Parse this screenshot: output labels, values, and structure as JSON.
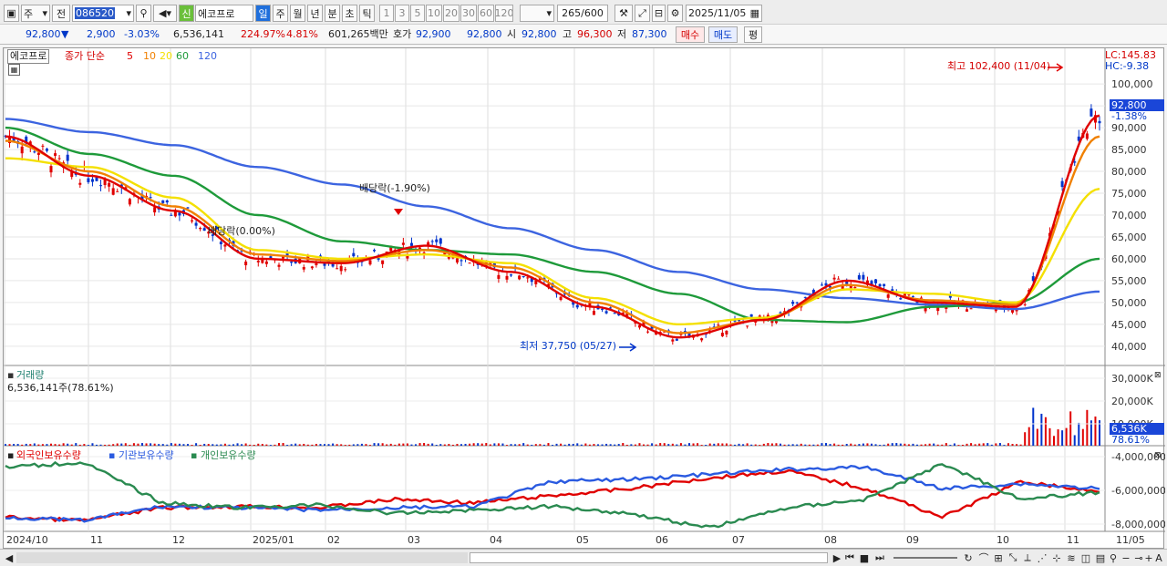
{
  "toolbar": {
    "type_select": "주",
    "prev_label": "전",
    "stock_code": "086520",
    "new_badge": "신",
    "stock_name": "에코프로",
    "periods": [
      "일",
      "주",
      "월",
      "년",
      "분",
      "초",
      "틱"
    ],
    "active_period": "일",
    "intervals": [
      "1",
      "3",
      "5",
      "10",
      "20",
      "30",
      "60",
      "120"
    ],
    "count_value": "265",
    "count_total": "/600",
    "date_value": "2025/11/05"
  },
  "quote": {
    "price": "92,800",
    "change_arrow": "▼",
    "change": "2,900",
    "change_pct": "-3.03%",
    "volume": "6,536,141",
    "volume_ratio": "224.97%",
    "turnover": "4.81%",
    "amount": "601,265백만",
    "bid_label": "호가",
    "bid1": "92,900",
    "bid2": "92,800",
    "open_label": "시",
    "open": "92,800",
    "high_label": "고",
    "high": "96,300",
    "low_label": "저",
    "low": "87,300",
    "buy_button": "매수",
    "sell_button": "매도",
    "eval_button": "평"
  },
  "price_panel": {
    "stock_tag": "에코프로",
    "legend_prefix": "종가 단순",
    "ma_labels": [
      "5",
      "10",
      "20",
      "60",
      "120"
    ],
    "ma_colors": [
      "#e00000",
      "#f08000",
      "#f4e000",
      "#1e9a3a",
      "#3c64e0"
    ],
    "lc_label": "LC:145.83",
    "hc_label": "HC:-9.38",
    "y_ticks": [
      "100,000",
      "95,000",
      "90,000",
      "85,000",
      "80,000",
      "75,000",
      "70,000",
      "65,000",
      "60,000",
      "55,000",
      "50,000",
      "45,000",
      "40,000"
    ],
    "current_price_tag": "92,800",
    "current_pct_tag": "-1.38%",
    "high_annotation": "최고 102,400 (11/04)",
    "low_annotation": "최저 37,750 (05/27)",
    "dividend1": "배당락(-1.90%)",
    "dividend2": "배당락(0.00%)"
  },
  "volume_panel": {
    "title": "거래량",
    "value_text": "6,536,141주(78.61%)",
    "y_ticks": [
      "30,000K",
      "20,000K",
      "10,000K"
    ],
    "current_tag": "6,536K",
    "current_pct": "78.61%"
  },
  "holding_panel": {
    "series_labels": [
      "외국인보유수량",
      "기관보유수량",
      "개인보유수량"
    ],
    "series_colors": [
      "#e00000",
      "#2a5ae0",
      "#2a8a50"
    ],
    "y_ticks": [
      "-4,000,000",
      "-6,000,000",
      "-8,000,000"
    ]
  },
  "x_axis": {
    "labels": [
      "2024/10",
      "11",
      "12",
      "2025/01",
      "02",
      "03",
      "04",
      "05",
      "06",
      "07",
      "08",
      "09",
      "10",
      "11"
    ],
    "right_label": "11/05"
  },
  "chart_data": {
    "type": "line",
    "title": "",
    "x": [
      "2024/10",
      "11",
      "12",
      "2025/01",
      "02",
      "03",
      "04",
      "05",
      "06",
      "07",
      "08",
      "09",
      "10",
      "11"
    ],
    "ylim": [
      36000,
      104000
    ],
    "series": [
      {
        "name": "5",
        "values": [
          88000,
          79000,
          71000,
          60000,
          59000,
          63000,
          57000,
          49000,
          42000,
          46000,
          55000,
          50000,
          49000,
          92800
        ]
      },
      {
        "name": "10",
        "values": [
          87000,
          80000,
          72000,
          61000,
          59500,
          62000,
          58000,
          50000,
          43000,
          46000,
          54000,
          50500,
          49500,
          88000
        ]
      },
      {
        "name": "20",
        "values": [
          83000,
          81000,
          74000,
          62000,
          60000,
          61000,
          59000,
          51000,
          45000,
          46500,
          53000,
          52000,
          50000,
          76000
        ]
      },
      {
        "name": "60",
        "values": [
          90000,
          84000,
          79000,
          70000,
          64000,
          62000,
          61000,
          57000,
          52000,
          46000,
          45500,
          49000,
          50000,
          60000
        ]
      },
      {
        "name": "120",
        "values": [
          92000,
          89000,
          86000,
          81000,
          77000,
          72000,
          67000,
          62000,
          57000,
          53000,
          51000,
          49500,
          48500,
          52500
        ]
      }
    ],
    "annotations": [
      "최고 102,400 (11/04)",
      "최저 37,750 (05/27)",
      "배당락(-1.90%)",
      "배당락(0.00%)"
    ]
  }
}
